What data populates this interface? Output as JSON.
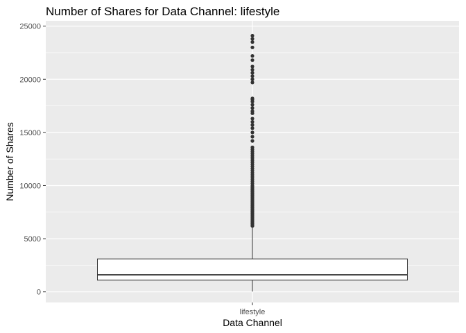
{
  "chart_data": {
    "type": "boxplot",
    "title": "Number of Shares for Data Channel: lifestyle",
    "xlabel": "Data Channel",
    "ylabel": "Number of Shares",
    "categories": [
      "lifestyle"
    ],
    "ylim": [
      -1000,
      25500
    ],
    "yticks": [
      0,
      5000,
      10000,
      15000,
      20000,
      25000
    ],
    "ytick_labels": [
      "0",
      "5000",
      "10000",
      "15000",
      "20000",
      "25000"
    ],
    "grid": true,
    "panel_background": "#ebebeb",
    "grid_color": "#ffffff",
    "box_fill": "#ffffff",
    "box_stroke": "#333333",
    "outlier_color": "#333333",
    "boxes": [
      {
        "category": "lifestyle",
        "min": 28,
        "q1": 1100,
        "median": 1600,
        "q3": 3100,
        "whisker_high": 6100,
        "outliers": [
          6200,
          6300,
          6400,
          6500,
          6600,
          6700,
          6800,
          6900,
          7000,
          7100,
          7200,
          7300,
          7400,
          7500,
          7600,
          7700,
          7800,
          7900,
          8000,
          8100,
          8200,
          8300,
          8400,
          8500,
          8600,
          8700,
          8800,
          8900,
          9000,
          9100,
          9200,
          9300,
          9400,
          9500,
          9600,
          9700,
          9800,
          9900,
          10000,
          10200,
          10400,
          10600,
          10800,
          11000,
          11200,
          11400,
          11600,
          11800,
          12000,
          12200,
          12400,
          12600,
          12800,
          13000,
          13200,
          13400,
          13600,
          14200,
          14600,
          15000,
          15400,
          15700,
          16000,
          16300,
          16800,
          17000,
          17300,
          17600,
          17900,
          18100,
          18200,
          19700,
          20000,
          20300,
          20600,
          20900,
          21200,
          21800,
          22200,
          23000,
          23500,
          23800,
          24100
        ]
      }
    ]
  }
}
